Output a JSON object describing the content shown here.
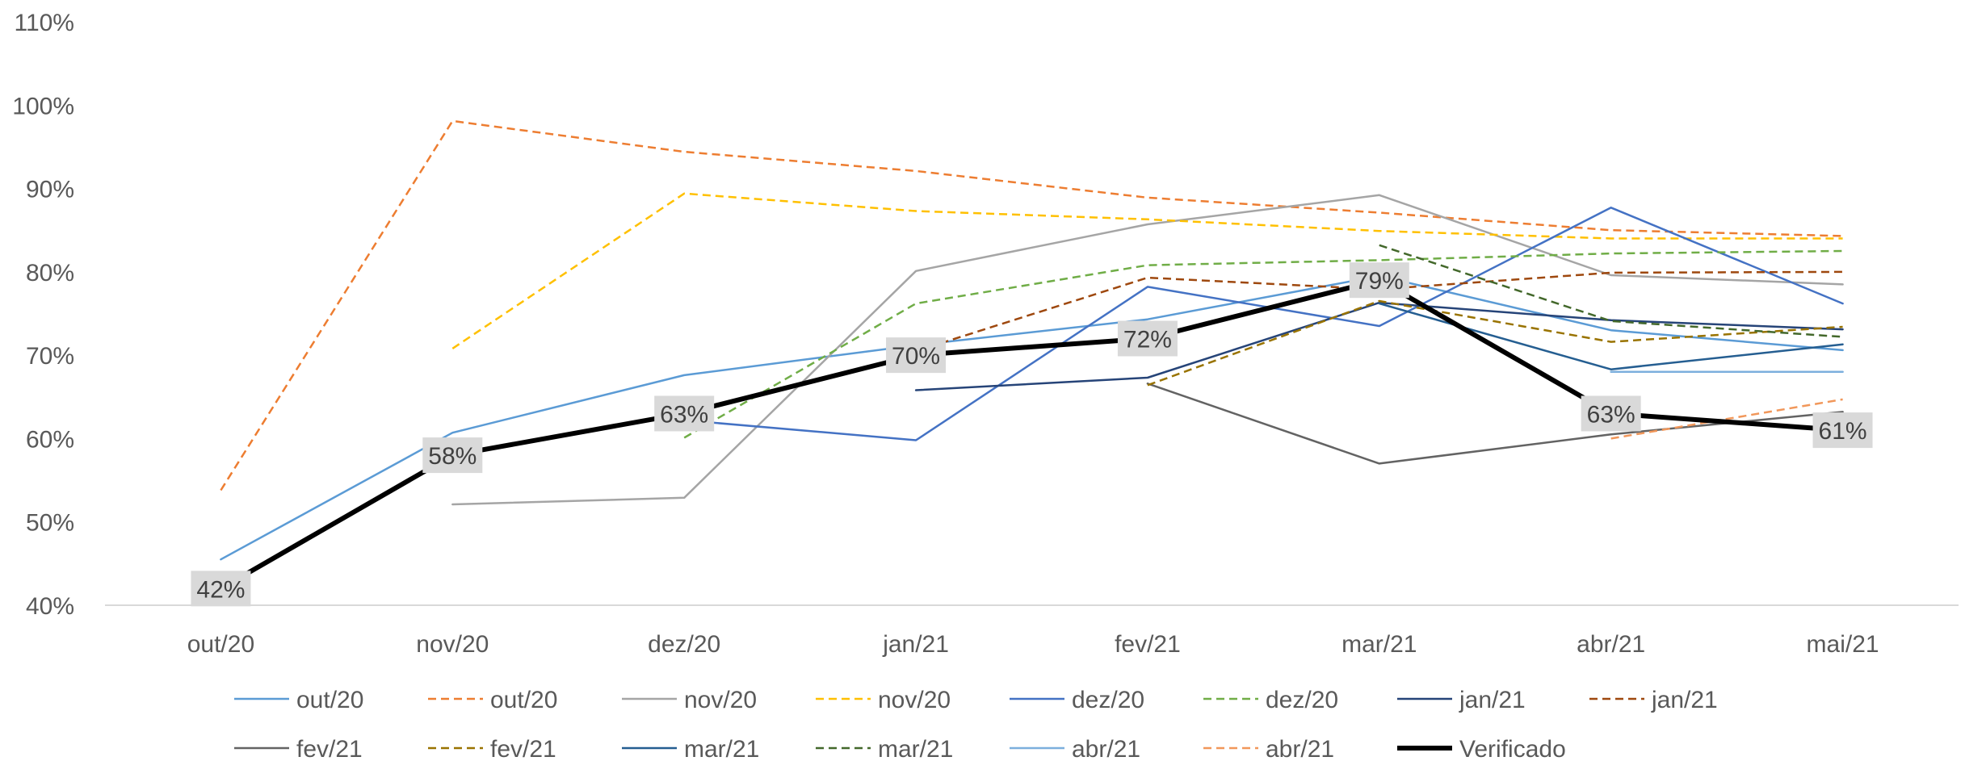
{
  "chart_data": {
    "type": "line",
    "categories": [
      "out/20",
      "nov/20",
      "dez/20",
      "jan/21",
      "fev/21",
      "mar/21",
      "abr/21",
      "mai/21"
    ],
    "ylim": [
      0.4,
      1.1
    ],
    "yticks": [
      0.4,
      0.5,
      0.6,
      0.7,
      0.8,
      0.9,
      1.0,
      1.1
    ],
    "ytick_labels": [
      "40%",
      "50%",
      "60%",
      "70%",
      "80%",
      "90%",
      "100%",
      "110%"
    ],
    "grid": false,
    "legend_position": "bottom",
    "series": [
      {
        "name": "out/20",
        "color": "#5b9bd5",
        "dash": false,
        "width": 2.5,
        "values": [
          0.455,
          0.607,
          0.676,
          0.712,
          0.743,
          0.795,
          0.73,
          0.706
        ]
      },
      {
        "name": "out/20",
        "color": "#ed7d31",
        "dash": true,
        "width": 2.5,
        "values": [
          0.538,
          0.981,
          0.944,
          0.921,
          0.889,
          0.871,
          0.85,
          0.843
        ]
      },
      {
        "name": "nov/20",
        "color": "#a5a5a5",
        "dash": false,
        "width": 2.5,
        "values": [
          null,
          0.521,
          0.529,
          0.801,
          0.857,
          0.892,
          0.796,
          0.785
        ]
      },
      {
        "name": "nov/20",
        "color": "#ffc000",
        "dash": true,
        "width": 2.5,
        "values": [
          null,
          0.708,
          0.894,
          0.873,
          0.863,
          0.849,
          0.84,
          0.84
        ]
      },
      {
        "name": "dez/20",
        "color": "#4472c4",
        "dash": false,
        "width": 2.5,
        "values": [
          null,
          null,
          0.622,
          0.598,
          0.782,
          0.735,
          0.877,
          0.762
        ]
      },
      {
        "name": "dez/20",
        "color": "#70ad47",
        "dash": true,
        "width": 2.5,
        "values": [
          null,
          null,
          0.601,
          0.762,
          0.808,
          0.814,
          0.822,
          0.825
        ]
      },
      {
        "name": "jan/21",
        "color": "#264478",
        "dash": false,
        "width": 2.5,
        "values": [
          null,
          null,
          null,
          0.658,
          0.673,
          0.763,
          0.742,
          0.731
        ]
      },
      {
        "name": "jan/21",
        "color": "#9e480e",
        "dash": true,
        "width": 2.5,
        "values": [
          null,
          null,
          null,
          0.705,
          0.793,
          0.779,
          0.799,
          0.8
        ]
      },
      {
        "name": "fev/21",
        "color": "#636363",
        "dash": false,
        "width": 2.5,
        "values": [
          null,
          null,
          null,
          null,
          0.666,
          0.57,
          0.605,
          0.632
        ]
      },
      {
        "name": "fev/21",
        "color": "#997300",
        "dash": true,
        "width": 2.5,
        "values": [
          null,
          null,
          null,
          null,
          0.664,
          0.765,
          0.716,
          0.734
        ]
      },
      {
        "name": "mar/21",
        "color": "#255e91",
        "dash": false,
        "width": 2.5,
        "values": [
          null,
          null,
          null,
          null,
          null,
          0.762,
          0.683,
          0.713
        ]
      },
      {
        "name": "mar/21",
        "color": "#43682b",
        "dash": true,
        "width": 2.5,
        "values": [
          null,
          null,
          null,
          null,
          null,
          0.832,
          0.741,
          0.722
        ]
      },
      {
        "name": "abr/21",
        "color": "#7cafdd",
        "dash": false,
        "width": 2.5,
        "values": [
          null,
          null,
          null,
          null,
          null,
          null,
          0.68,
          0.68
        ]
      },
      {
        "name": "abr/21",
        "color": "#f1975a",
        "dash": true,
        "width": 2.5,
        "values": [
          null,
          null,
          null,
          null,
          null,
          null,
          0.6,
          0.647
        ]
      },
      {
        "name": "Verificado",
        "color": "#000000",
        "dash": false,
        "width": 6,
        "values": [
          0.42,
          0.58,
          0.63,
          0.7,
          0.72,
          0.79,
          0.63,
          0.61
        ],
        "labels": [
          "42%",
          "58%",
          "63%",
          "70%",
          "72%",
          "79%",
          "63%",
          "61%"
        ]
      }
    ]
  }
}
